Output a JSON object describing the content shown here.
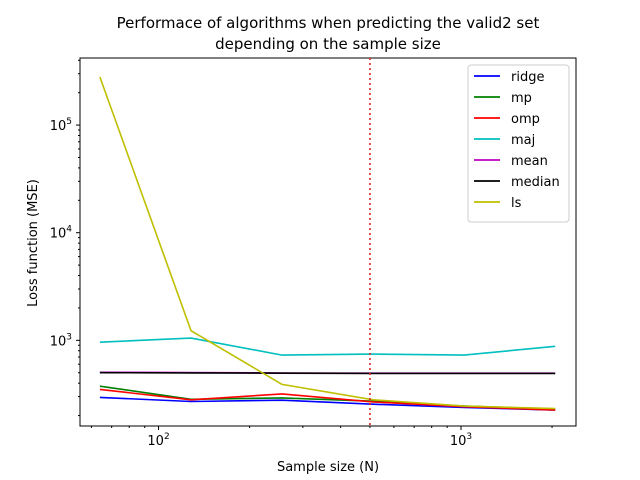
{
  "chart_data": {
    "type": "line",
    "title_line1": "Performace of algorithms when predicting the valid2 set",
    "title_line2": "depending on the sample size",
    "xlabel": "Sample size (N)",
    "ylabel": "Loss function (MSE)",
    "xscale": "log",
    "yscale": "log",
    "xlim": [
      55,
      2400
    ],
    "ylim": [
      160,
      420000
    ],
    "x_ticks": [
      {
        "value": 100,
        "base": "10",
        "exp": "2"
      },
      {
        "value": 1000,
        "base": "10",
        "exp": "3"
      }
    ],
    "y_ticks": [
      {
        "value": 1000,
        "base": "10",
        "exp": "3"
      },
      {
        "value": 10000,
        "base": "10",
        "exp": "4"
      },
      {
        "value": 100000,
        "base": "10",
        "exp": "5"
      }
    ],
    "x": [
      64,
      128,
      256,
      512,
      1024,
      2048
    ],
    "vline": {
      "x": 500,
      "color": "#d62728",
      "style": "dotted"
    },
    "legend_position": "upper right",
    "grid": false,
    "series": [
      {
        "name": "ridge",
        "color": "#0000ff",
        "values": [
          295,
          270,
          278,
          255,
          238,
          225
        ]
      },
      {
        "name": "mp",
        "color": "#008000",
        "values": [
          375,
          283,
          292,
          272,
          245,
          230
        ]
      },
      {
        "name": "omp",
        "color": "#ff0000",
        "values": [
          350,
          280,
          318,
          268,
          242,
          225
        ]
      },
      {
        "name": "maj",
        "color": "#00bfbf",
        "values": [
          960,
          1050,
          730,
          745,
          730,
          880
        ]
      },
      {
        "name": "mean",
        "color": "#bf00bf",
        "values": [
          505,
          503,
          497,
          495,
          495,
          495
        ]
      },
      {
        "name": "median",
        "color": "#000000",
        "values": [
          500,
          498,
          495,
          493,
          493,
          493
        ]
      },
      {
        "name": "ls",
        "color": "#bfbf00",
        "values": [
          280000,
          1230,
          390,
          280,
          245,
          232
        ]
      }
    ]
  }
}
